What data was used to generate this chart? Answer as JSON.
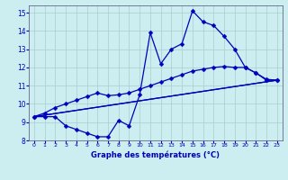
{
  "title": "Graphe des températures (°C)",
  "bg_color": "#cceef0",
  "grid_color": "#aacccc",
  "line_color": "#0000bb",
  "xlim": [
    -0.5,
    23.5
  ],
  "ylim": [
    8,
    15.4
  ],
  "xticks": [
    0,
    1,
    2,
    3,
    4,
    5,
    6,
    7,
    8,
    9,
    10,
    11,
    12,
    13,
    14,
    15,
    16,
    17,
    18,
    19,
    20,
    21,
    22,
    23
  ],
  "yticks": [
    8,
    9,
    10,
    11,
    12,
    13,
    14,
    15
  ],
  "jagged_x": [
    0,
    1,
    2,
    3,
    4,
    5,
    6,
    7,
    8,
    9,
    10,
    11,
    12,
    13,
    14,
    15,
    16,
    17,
    18,
    19,
    20,
    21,
    22,
    23
  ],
  "jagged_y": [
    9.3,
    9.3,
    9.3,
    8.8,
    8.6,
    8.4,
    8.2,
    8.2,
    9.1,
    8.8,
    10.5,
    13.9,
    12.2,
    13.0,
    13.3,
    15.1,
    14.5,
    14.3,
    13.7,
    13.0,
    12.0,
    11.7,
    11.3,
    11.3
  ],
  "upper_x": [
    0,
    1,
    2,
    3,
    4,
    5,
    6,
    7,
    8,
    9,
    10,
    11,
    12,
    13,
    14,
    15,
    16,
    17,
    18,
    19,
    20,
    21,
    22,
    23
  ],
  "upper_y": [
    9.3,
    9.5,
    9.8,
    10.0,
    10.2,
    10.4,
    10.6,
    10.45,
    10.5,
    10.6,
    10.8,
    11.0,
    11.2,
    11.4,
    11.6,
    11.8,
    11.9,
    12.0,
    12.05,
    12.0,
    12.0,
    11.7,
    11.35,
    11.3
  ],
  "line3_x": [
    0,
    23
  ],
  "line3_y": [
    9.3,
    11.3
  ],
  "line4_x": [
    0,
    23
  ],
  "line4_y": [
    9.3,
    11.3
  ]
}
